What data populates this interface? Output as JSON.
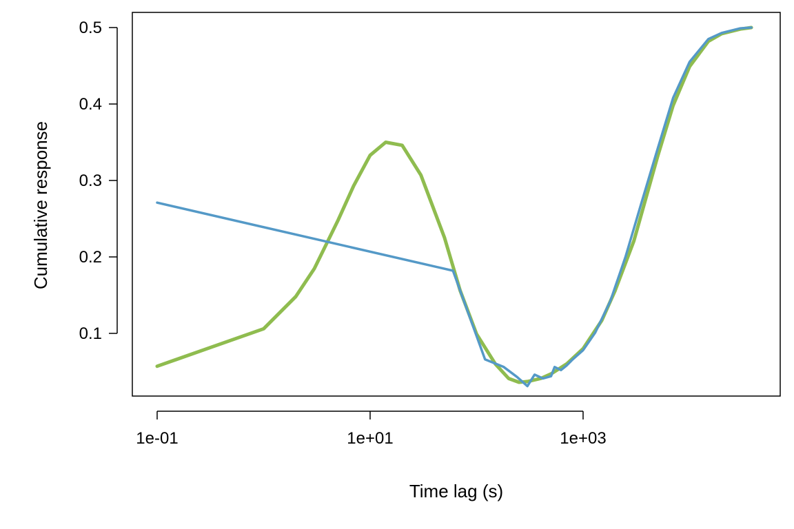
{
  "chart_data": {
    "type": "line",
    "xlabel": "Time lag (s)",
    "ylabel": "Cumulative response",
    "x_scale": "log10",
    "xlim": [
      0.1,
      40000
    ],
    "ylim": [
      0.025,
      0.51
    ],
    "x_ticks": [
      {
        "value": 0.1,
        "label": "1e-01"
      },
      {
        "value": 10,
        "label": "1e+01"
      },
      {
        "value": 1000,
        "label": "1e+03"
      }
    ],
    "y_ticks": [
      {
        "value": 0.1,
        "label": "0.1"
      },
      {
        "value": 0.2,
        "label": "0.2"
      },
      {
        "value": 0.3,
        "label": "0.3"
      },
      {
        "value": 0.4,
        "label": "0.4"
      },
      {
        "value": 0.5,
        "label": "0.5"
      }
    ],
    "grid": false,
    "series": [
      {
        "color": "#5499c7",
        "x": [
          0.1,
          60,
          120,
          180,
          240,
          300,
          350,
          420,
          500,
          540,
          620,
          700,
          800,
          1000,
          1300,
          1800,
          2500,
          3500,
          5000,
          7000,
          10000,
          15000,
          20000,
          30000,
          38000
        ],
        "y": [
          0.271,
          0.182,
          0.066,
          0.056,
          0.043,
          0.031,
          0.046,
          0.041,
          0.044,
          0.056,
          0.052,
          0.058,
          0.066,
          0.078,
          0.101,
          0.142,
          0.2,
          0.269,
          0.341,
          0.408,
          0.455,
          0.485,
          0.493,
          0.499,
          0.5
        ]
      },
      {
        "color": "#8fbc4f",
        "x": [
          0.1,
          1,
          2,
          3,
          5,
          7,
          10,
          14,
          20,
          30,
          50,
          70,
          100,
          150,
          200,
          250,
          300,
          400,
          500,
          700,
          1000,
          1500,
          2000,
          3000,
          5000,
          7000,
          10000,
          15000,
          20000,
          30000,
          38000
        ],
        "y": [
          0.057,
          0.106,
          0.148,
          0.185,
          0.248,
          0.293,
          0.333,
          0.35,
          0.346,
          0.307,
          0.225,
          0.156,
          0.099,
          0.06,
          0.041,
          0.036,
          0.037,
          0.041,
          0.047,
          0.06,
          0.08,
          0.117,
          0.156,
          0.221,
          0.331,
          0.398,
          0.449,
          0.482,
          0.492,
          0.498,
          0.5
        ]
      }
    ]
  }
}
